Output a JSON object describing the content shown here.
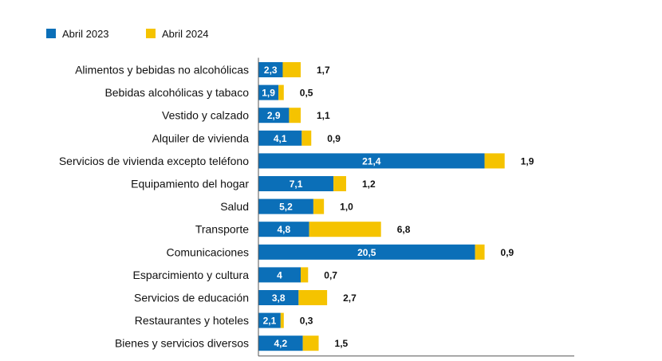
{
  "chart_data": {
    "type": "bar",
    "orientation": "horizontal",
    "stacked": true,
    "categories": [
      "Alimentos y bebidas no alcohólicas",
      "Bebidas alcohólicas y tabaco",
      "Vestido y calzado",
      "Alquiler de vivienda",
      "Servicios de vivienda excepto teléfono",
      "Equipamiento del hogar",
      "Salud",
      "Transporte",
      "Comunicaciones",
      "Esparcimiento y cultura",
      "Servicios de educación",
      "Restaurantes y hoteles",
      "Bienes y servicios diversos"
    ],
    "series": [
      {
        "name": "Abril 2023",
        "color": "#0b6fb8",
        "values": [
          2.3,
          1.9,
          2.9,
          4.1,
          21.4,
          7.1,
          5.2,
          4.8,
          20.5,
          4,
          3.8,
          2.1,
          4.2
        ],
        "labels": [
          "2,3",
          "1,9",
          "2,9",
          "4,1",
          "21,4",
          "7,1",
          "5,2",
          "4,8",
          "20,5",
          "4",
          "3,8",
          "2,1",
          "4,2"
        ]
      },
      {
        "name": "Abril 2024",
        "color": "#f5c300",
        "values": [
          1.7,
          0.5,
          1.1,
          0.9,
          1.9,
          1.2,
          1.0,
          6.8,
          0.9,
          0.7,
          2.7,
          0.3,
          1.5
        ],
        "labels": [
          "1,7",
          "0,5",
          "1,1",
          "0,9",
          "1,9",
          "1,2",
          "1,0",
          "6,8",
          "0,9",
          "0,7",
          "2,7",
          "0,3",
          "1,5"
        ]
      }
    ],
    "title": "",
    "xlabel": "",
    "ylabel": "",
    "xlim": [
      0,
      30
    ],
    "grid": false,
    "legend": "top-left"
  }
}
